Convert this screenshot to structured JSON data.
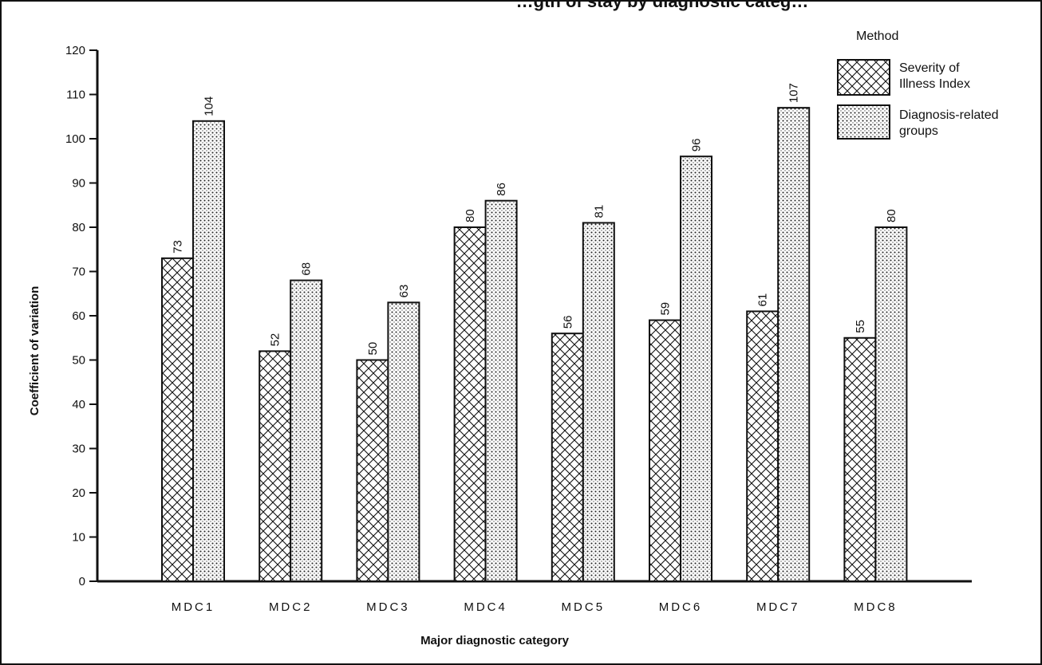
{
  "chart_data": {
    "type": "bar",
    "title": "…gth of stay by diagnostic categ…",
    "xlabel": "Major diagnostic category",
    "ylabel": "Coefficient of variation",
    "ylim": [
      0,
      120
    ],
    "yticks": [
      0,
      10,
      20,
      30,
      40,
      50,
      60,
      70,
      80,
      90,
      100,
      110,
      120
    ],
    "categories": [
      "MDC1",
      "MDC2",
      "MDC3",
      "MDC4",
      "MDC5",
      "MDC6",
      "MDC7",
      "MDC8"
    ],
    "series": [
      {
        "name": "Severity of Illness Index",
        "name_lines": [
          "Severity of",
          "Illness Index"
        ],
        "pattern": "crosshatch",
        "values": [
          73,
          52,
          50,
          80,
          56,
          59,
          61,
          55
        ]
      },
      {
        "name": "Diagnosis-related groups",
        "name_lines": [
          "Diagnosis-related",
          "groups"
        ],
        "pattern": "dots",
        "values": [
          104,
          68,
          63,
          86,
          81,
          96,
          107,
          80
        ]
      }
    ],
    "legend": {
      "title": "Method",
      "position": "top-right"
    },
    "grid": false,
    "colors": {
      "ink": "#111111",
      "background": "#ffffff"
    }
  }
}
